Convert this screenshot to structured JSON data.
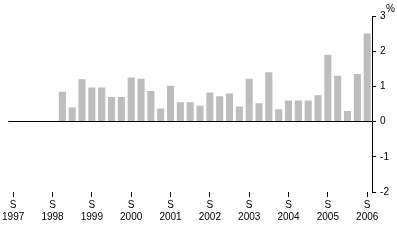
{
  "chart_data": {
    "type": "bar",
    "y_label": "%",
    "categories": [
      "S 1997",
      null,
      null,
      null,
      "S 1998",
      null,
      null,
      null,
      "S 1999",
      null,
      null,
      null,
      "S 2000",
      null,
      null,
      null,
      "S 2001",
      null,
      null,
      null,
      "S 2002",
      null,
      null,
      null,
      "S 2003",
      null,
      null,
      null,
      "S 2004",
      null,
      null,
      null,
      "S 2005",
      null,
      null,
      null,
      "S 2006"
    ],
    "values": [
      null,
      null,
      null,
      null,
      null,
      0.85,
      0.4,
      1.2,
      0.97,
      0.97,
      0.7,
      0.7,
      1.25,
      1.22,
      0.87,
      0.37,
      1.02,
      0.55,
      0.55,
      0.45,
      0.83,
      0.72,
      0.8,
      0.43,
      1.22,
      0.52,
      1.4,
      0.35,
      0.6,
      0.6,
      0.6,
      0.75,
      1.9,
      1.3,
      0.3,
      1.35,
      2.5
    ],
    "color": "#bdbdbd",
    "ylim": [
      -2,
      3
    ],
    "yticks": [
      -2,
      -1,
      0,
      1,
      2,
      3
    ],
    "grid": false
  }
}
